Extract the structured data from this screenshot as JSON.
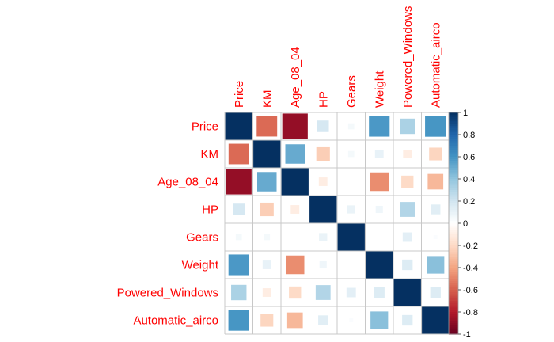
{
  "chart_data": {
    "type": "heatmap",
    "title": "",
    "variables": [
      "Price",
      "KM",
      "Age_08_04",
      "HP",
      "Gears",
      "Weight",
      "Powered_Windows",
      "Automatic_airco"
    ],
    "matrix": [
      [
        1.0,
        -0.57,
        -0.88,
        0.18,
        0.05,
        0.58,
        0.32,
        0.59
      ],
      [
        -0.57,
        1.0,
        0.51,
        -0.25,
        0.05,
        0.1,
        -0.1,
        -0.22
      ],
      [
        -0.88,
        0.51,
        1.0,
        -0.1,
        0.0,
        -0.47,
        -0.2,
        -0.33
      ],
      [
        0.18,
        -0.25,
        -0.1,
        1.0,
        0.09,
        0.07,
        0.3,
        0.13
      ],
      [
        0.05,
        0.05,
        0.0,
        0.09,
        1.0,
        0.0,
        0.12,
        0.02
      ],
      [
        0.58,
        0.1,
        -0.47,
        0.07,
        0.0,
        1.0,
        0.15,
        0.42
      ],
      [
        0.32,
        -0.1,
        -0.2,
        0.3,
        0.12,
        0.15,
        1.0,
        0.15
      ],
      [
        0.59,
        -0.22,
        -0.33,
        0.13,
        0.02,
        0.42,
        0.15,
        1.0
      ]
    ],
    "colorbar": {
      "range": [
        -1,
        1
      ],
      "tick_values": [
        1,
        0.8,
        0.6,
        0.4,
        0.2,
        0,
        -0.2,
        -0.4,
        -0.6,
        -0.8,
        -1
      ],
      "tick_labels": [
        "1",
        "0.8",
        "0.6",
        "0.4",
        "0.2",
        "0",
        "-0.2",
        "-0.4",
        "-0.6",
        "-0.8",
        "-1"
      ]
    },
    "colors": {
      "label": "#ff0000",
      "grid": "#c8c8c8",
      "negative_strong": "#67001f",
      "neutral": "#ffffff",
      "positive_strong": "#053061"
    },
    "cell_shape": "square-size-by-magnitude",
    "legend": "right"
  }
}
